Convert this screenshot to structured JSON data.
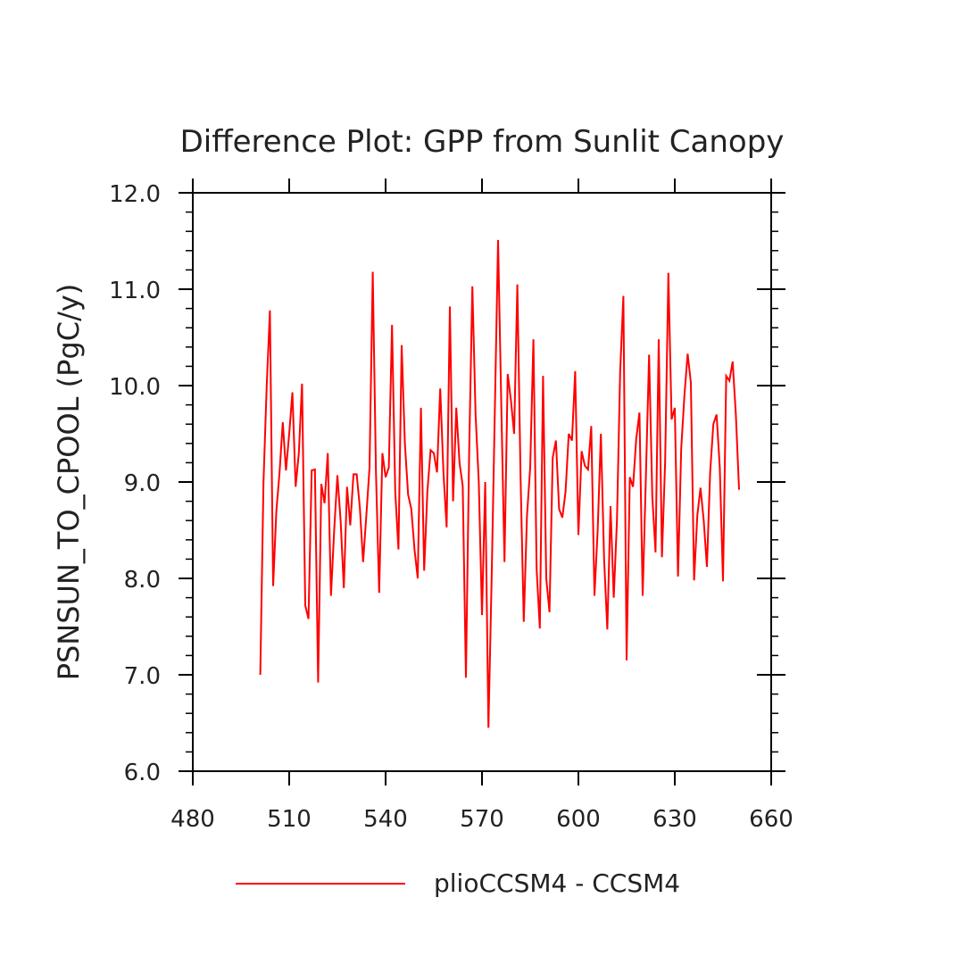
{
  "chart_data": {
    "type": "line",
    "title": "Difference Plot: GPP from Sunlit Canopy",
    "xlabel": "",
    "ylabel": "PSNSUN_TO_CPOOL  (PgC/y)",
    "xlim": [
      480,
      660
    ],
    "ylim": [
      6.0,
      12.0
    ],
    "x_ticks": [
      480,
      510,
      540,
      570,
      600,
      630,
      660
    ],
    "x_tick_labels": [
      "480",
      "510",
      "540",
      "570",
      "600",
      "630",
      "660"
    ],
    "y_ticks": [
      6.0,
      7.0,
      8.0,
      9.0,
      10.0,
      11.0,
      12.0
    ],
    "y_tick_labels": [
      "6.0",
      "7.0",
      "8.0",
      "9.0",
      "10.0",
      "11.0",
      "12.0"
    ],
    "legend": {
      "position": "bottom",
      "entries": [
        "plioCCSM4 - CCSM4"
      ]
    },
    "series": [
      {
        "name": "plioCCSM4 - CCSM4",
        "color": "#ff0000",
        "x": [
          501,
          502,
          503,
          504,
          505,
          506,
          507,
          508,
          509,
          510,
          511,
          512,
          513,
          514,
          515,
          516,
          517,
          518,
          519,
          520,
          521,
          522,
          523,
          524,
          525,
          526,
          527,
          528,
          529,
          530,
          531,
          532,
          533,
          534,
          535,
          536,
          537,
          538,
          539,
          540,
          541,
          542,
          543,
          544,
          545,
          546,
          547,
          548,
          549,
          550,
          551,
          552,
          553,
          554,
          555,
          556,
          557,
          558,
          559,
          560,
          561,
          562,
          563,
          564,
          565,
          566,
          567,
          568,
          569,
          570,
          571,
          572,
          573,
          574,
          575,
          576,
          577,
          578,
          579,
          580,
          581,
          582,
          583,
          584,
          585,
          586,
          587,
          588,
          589,
          590,
          591,
          592,
          593,
          594,
          595,
          596,
          597,
          598,
          599,
          600,
          601,
          602,
          603,
          604,
          605,
          606,
          607,
          608,
          609,
          610,
          611,
          612,
          613,
          614,
          615,
          616,
          617,
          618,
          619,
          620,
          621,
          622,
          623,
          624,
          625,
          626,
          627,
          628,
          629,
          630,
          631,
          632,
          633,
          634,
          635,
          636,
          637,
          638,
          639,
          640,
          641,
          642,
          643,
          644,
          645,
          646,
          647,
          648,
          649,
          650
        ],
        "values": [
          7.0,
          9.0,
          10.0,
          10.78,
          7.92,
          8.7,
          9.1,
          9.62,
          9.12,
          9.5,
          9.93,
          8.95,
          9.3,
          10.02,
          7.72,
          7.58,
          9.12,
          9.13,
          6.92,
          8.98,
          8.78,
          9.3,
          7.82,
          8.5,
          9.07,
          8.6,
          7.9,
          8.95,
          8.55,
          9.08,
          9.08,
          8.73,
          8.17,
          8.65,
          9.15,
          11.18,
          9.1,
          7.85,
          9.3,
          9.05,
          9.15,
          10.63,
          8.9,
          8.3,
          10.42,
          9.4,
          8.87,
          8.72,
          8.3,
          8.0,
          9.77,
          8.08,
          8.9,
          9.33,
          9.3,
          9.1,
          9.97,
          9.1,
          8.53,
          10.82,
          8.8,
          9.77,
          9.2,
          8.96,
          6.97,
          9.3,
          11.03,
          9.7,
          9.0,
          7.62,
          9.0,
          6.45,
          8.0,
          9.75,
          11.51,
          9.8,
          8.17,
          10.12,
          9.85,
          9.5,
          11.05,
          9.05,
          7.55,
          8.65,
          9.15,
          10.48,
          8.1,
          7.48,
          10.1,
          8.0,
          7.65,
          9.25,
          9.43,
          8.72,
          8.63,
          8.9,
          9.5,
          9.43,
          10.15,
          8.45,
          9.32,
          9.17,
          9.13,
          9.58,
          7.82,
          8.5,
          9.5,
          8.2,
          7.47,
          8.75,
          7.8,
          8.6,
          10.15,
          10.93,
          7.15,
          9.05,
          8.95,
          9.45,
          9.72,
          7.82,
          9.05,
          10.32,
          8.85,
          8.27,
          10.48,
          8.22,
          9.22,
          11.17,
          9.65,
          9.77,
          8.02,
          9.35,
          9.9,
          10.33,
          10.03,
          7.98,
          8.65,
          8.94,
          8.6,
          8.12,
          9.1,
          9.6,
          9.7,
          9.15,
          7.97,
          10.1,
          10.05,
          10.25,
          9.7,
          8.92
        ]
      }
    ]
  }
}
